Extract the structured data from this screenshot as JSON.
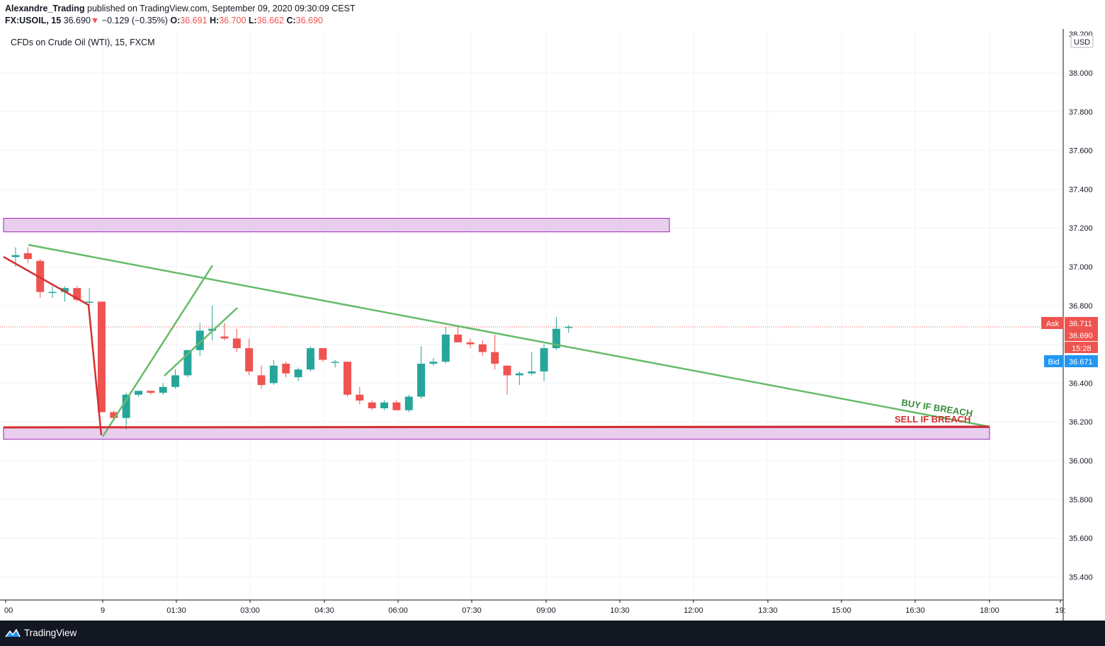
{
  "header": {
    "author": "Alexandre_Trading",
    "published": "published on TradingView.com, September 09, 2020 09:30:09 CEST",
    "symbol": "FX:USOIL, 15",
    "last": "36.690",
    "change": "−0.129 (−0.35%)",
    "o_label": "O:",
    "o": "36.691",
    "h_label": "H:",
    "h": "36.700",
    "l_label": "L:",
    "l": "36.662",
    "c_label": "C:",
    "c": "36.690"
  },
  "chart_title": "CFDs on Crude Oil (WTI), 15, FXCM",
  "footer": {
    "brand": "TradingView"
  },
  "colors": {
    "up": "#26a69a",
    "down": "#ef5350",
    "zone": "#e1bee7",
    "zone_border": "#9c27b0",
    "trend": "#66bb6a",
    "support": "#d32f2f",
    "bid": "#2196f3"
  },
  "chart_data": {
    "type": "candlestick",
    "currency": "USD",
    "ylim": [
      35.25,
      38.22
    ],
    "y_ticks": [
      "38.200",
      "38.000",
      "37.800",
      "37.600",
      "37.400",
      "37.200",
      "37.000",
      "36.800",
      "36.600",
      "36.400",
      "36.200",
      "36.000",
      "35.800",
      "35.600",
      "35.400"
    ],
    "x_tick_labels": [
      "00",
      "9",
      "01:30",
      "03:00",
      "04:30",
      "06:00",
      "07:30",
      "09:00",
      "10:30",
      "12:00",
      "13:30",
      "15:00",
      "16:30",
      "18:00",
      "19:"
    ],
    "candles": [
      {
        "o": 37.05,
        "h": 37.1,
        "l": 37.0,
        "c": 37.06
      },
      {
        "o": 37.07,
        "h": 37.1,
        "l": 37.02,
        "c": 37.04
      },
      {
        "o": 37.03,
        "h": 37.04,
        "l": 36.84,
        "c": 36.87
      },
      {
        "o": 36.87,
        "h": 36.9,
        "l": 36.84,
        "c": 36.87
      },
      {
        "o": 36.87,
        "h": 36.9,
        "l": 36.82,
        "c": 36.89
      },
      {
        "o": 36.89,
        "h": 36.9,
        "l": 36.82,
        "c": 36.83
      },
      {
        "o": 36.82,
        "h": 36.89,
        "l": 36.8,
        "c": 36.82
      },
      {
        "o": 36.82,
        "h": 36.82,
        "l": 36.25,
        "c": 36.25
      },
      {
        "o": 36.25,
        "h": 36.26,
        "l": 36.21,
        "c": 36.22
      },
      {
        "o": 36.22,
        "h": 36.35,
        "l": 36.16,
        "c": 36.34
      },
      {
        "o": 36.34,
        "h": 36.36,
        "l": 36.33,
        "c": 36.36
      },
      {
        "o": 36.36,
        "h": 36.36,
        "l": 36.34,
        "c": 36.35
      },
      {
        "o": 36.35,
        "h": 36.4,
        "l": 36.34,
        "c": 36.38
      },
      {
        "o": 36.38,
        "h": 36.47,
        "l": 36.37,
        "c": 36.44
      },
      {
        "o": 36.44,
        "h": 36.57,
        "l": 36.43,
        "c": 36.57
      },
      {
        "o": 36.57,
        "h": 36.71,
        "l": 36.54,
        "c": 36.67
      },
      {
        "o": 36.67,
        "h": 36.8,
        "l": 36.62,
        "c": 36.68
      },
      {
        "o": 36.64,
        "h": 36.71,
        "l": 36.62,
        "c": 36.63
      },
      {
        "o": 36.63,
        "h": 36.68,
        "l": 36.56,
        "c": 36.58
      },
      {
        "o": 36.58,
        "h": 36.63,
        "l": 36.44,
        "c": 36.46
      },
      {
        "o": 36.44,
        "h": 36.49,
        "l": 36.37,
        "c": 36.39
      },
      {
        "o": 36.4,
        "h": 36.52,
        "l": 36.39,
        "c": 36.49
      },
      {
        "o": 36.5,
        "h": 36.51,
        "l": 36.43,
        "c": 36.45
      },
      {
        "o": 36.43,
        "h": 36.48,
        "l": 36.41,
        "c": 36.47
      },
      {
        "o": 36.47,
        "h": 36.59,
        "l": 36.46,
        "c": 36.58
      },
      {
        "o": 36.58,
        "h": 36.58,
        "l": 36.51,
        "c": 36.52
      },
      {
        "o": 36.51,
        "h": 36.52,
        "l": 36.48,
        "c": 36.51
      },
      {
        "o": 36.51,
        "h": 36.51,
        "l": 36.33,
        "c": 36.34
      },
      {
        "o": 36.34,
        "h": 36.38,
        "l": 36.29,
        "c": 36.31
      },
      {
        "o": 36.3,
        "h": 36.31,
        "l": 36.26,
        "c": 36.27
      },
      {
        "o": 36.27,
        "h": 36.31,
        "l": 36.26,
        "c": 36.3
      },
      {
        "o": 36.3,
        "h": 36.31,
        "l": 36.26,
        "c": 36.26
      },
      {
        "o": 36.26,
        "h": 36.34,
        "l": 36.25,
        "c": 36.33
      },
      {
        "o": 36.33,
        "h": 36.59,
        "l": 36.32,
        "c": 36.5
      },
      {
        "o": 36.5,
        "h": 36.53,
        "l": 36.49,
        "c": 36.51
      },
      {
        "o": 36.51,
        "h": 36.69,
        "l": 36.5,
        "c": 36.65
      },
      {
        "o": 36.65,
        "h": 36.69,
        "l": 36.61,
        "c": 36.61
      },
      {
        "o": 36.61,
        "h": 36.63,
        "l": 36.58,
        "c": 36.6
      },
      {
        "o": 36.6,
        "h": 36.62,
        "l": 36.54,
        "c": 36.56
      },
      {
        "o": 36.56,
        "h": 36.65,
        "l": 36.47,
        "c": 36.5
      },
      {
        "o": 36.49,
        "h": 36.49,
        "l": 36.34,
        "c": 36.44
      },
      {
        "o": 36.44,
        "h": 36.46,
        "l": 36.39,
        "c": 36.45
      },
      {
        "o": 36.45,
        "h": 36.56,
        "l": 36.44,
        "c": 36.46
      },
      {
        "o": 36.46,
        "h": 36.6,
        "l": 36.41,
        "c": 36.58
      },
      {
        "o": 36.58,
        "h": 36.74,
        "l": 36.57,
        "c": 36.68
      },
      {
        "o": 36.69,
        "h": 36.7,
        "l": 36.66,
        "c": 36.69
      }
    ],
    "zones": [
      {
        "top": 37.25,
        "bottom": 37.18
      },
      {
        "top": 36.17,
        "bottom": 36.11
      }
    ],
    "lines": [
      {
        "name": "descending-trendline",
        "color": "#66bb6a",
        "points": [
          [
            37.12,
            "open"
          ],
          [
            36.17,
            "end"
          ]
        ]
      }
    ],
    "annotations": {
      "buy": "BUY IF BREACH",
      "sell": "SELL IF BREACH"
    },
    "price_labels": {
      "ask_label": "Ask",
      "ask": "36.711",
      "last": "36.690",
      "countdown": "15:28",
      "bid_label": "Bid",
      "bid": "36.671"
    }
  }
}
